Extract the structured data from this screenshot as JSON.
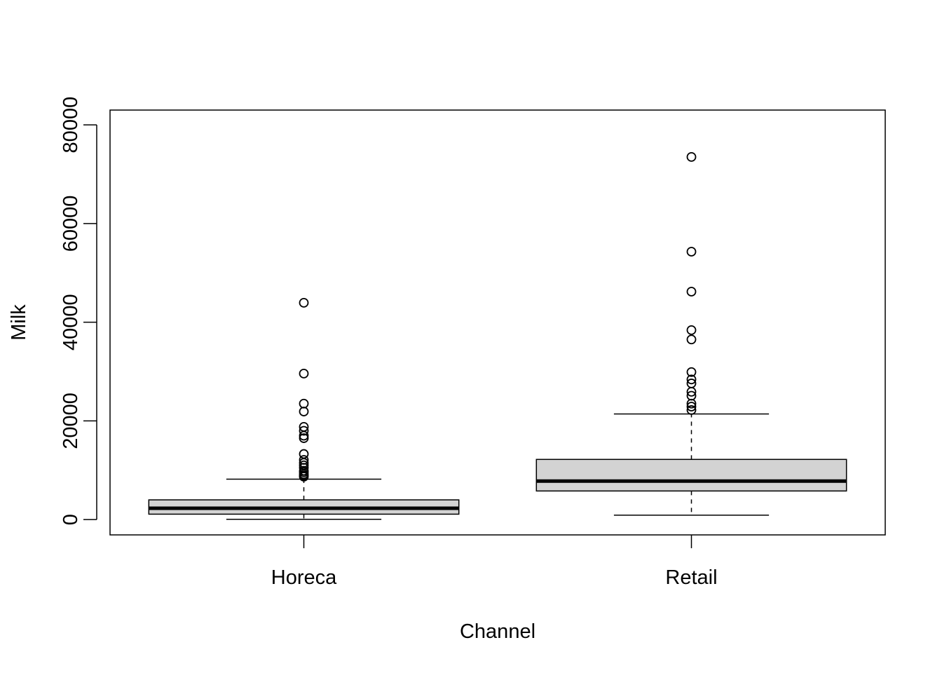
{
  "chart_data": {
    "type": "boxplot",
    "xlabel": "Channel",
    "ylabel": "Milk",
    "categories": [
      "Horeca",
      "Retail"
    ],
    "ylim": [
      -3100,
      83000
    ],
    "yticks": [
      0,
      20000,
      40000,
      60000,
      80000
    ],
    "ytick_labels": [
      "0",
      "20000",
      "40000",
      "60000",
      "80000"
    ],
    "box_fill": "#d3d3d3",
    "line_color": "#000000",
    "boxes": [
      {
        "category": "Horeca",
        "whisker_low": 55,
        "q1": 1100,
        "median": 2300,
        "q3": 4000,
        "whisker_high": 8200,
        "outliers": [
          43950,
          29600,
          23500,
          21900,
          18800,
          18000,
          17000,
          16500,
          13300,
          12100,
          11500,
          11000,
          10500,
          9900,
          9600,
          9200,
          8900,
          8700
        ]
      },
      {
        "category": "Retail",
        "whisker_low": 900,
        "q1": 5800,
        "median": 7800,
        "q3": 12200,
        "whisker_high": 21400,
        "outliers": [
          73500,
          54300,
          46200,
          38400,
          36500,
          29900,
          28400,
          27600,
          25900,
          25100,
          23500,
          22900,
          22200
        ]
      }
    ]
  }
}
